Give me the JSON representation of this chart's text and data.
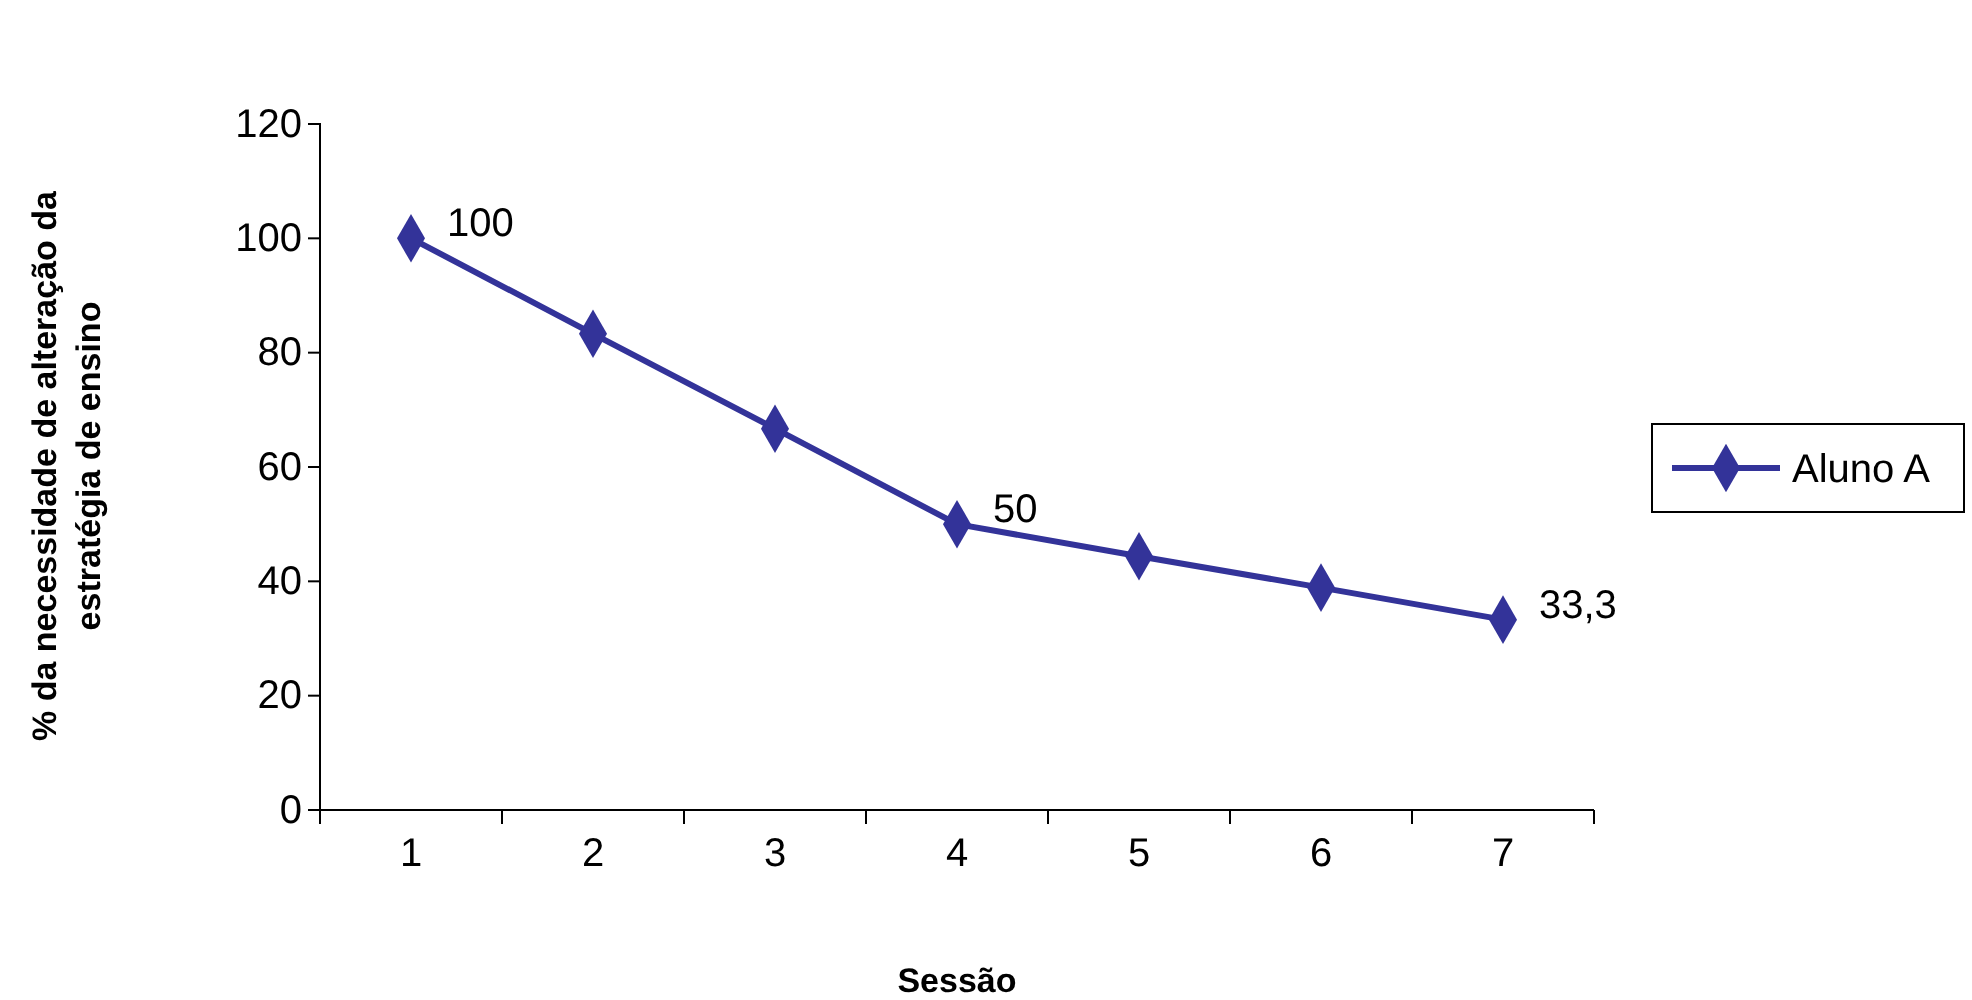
{
  "chart_data": {
    "type": "line",
    "xlabel": "Sessão",
    "ylabel": "% da necessidade de alteração da\nestratégia de ensino",
    "categories": [
      "1",
      "2",
      "3",
      "4",
      "5",
      "6",
      "7"
    ],
    "series": [
      {
        "name": "Aluno A",
        "color": "#333399",
        "values": [
          100,
          83.3,
          66.7,
          50,
          44.4,
          38.9,
          33.3
        ],
        "value_labels": [
          "100",
          null,
          null,
          "50",
          null,
          null,
          "33,3"
        ]
      }
    ],
    "ylim": [
      0,
      120
    ],
    "yticks": [
      0,
      20,
      40,
      60,
      80,
      100,
      120
    ],
    "grid": false,
    "legend": "right",
    "marker": "diamond",
    "line_style": "solid"
  }
}
